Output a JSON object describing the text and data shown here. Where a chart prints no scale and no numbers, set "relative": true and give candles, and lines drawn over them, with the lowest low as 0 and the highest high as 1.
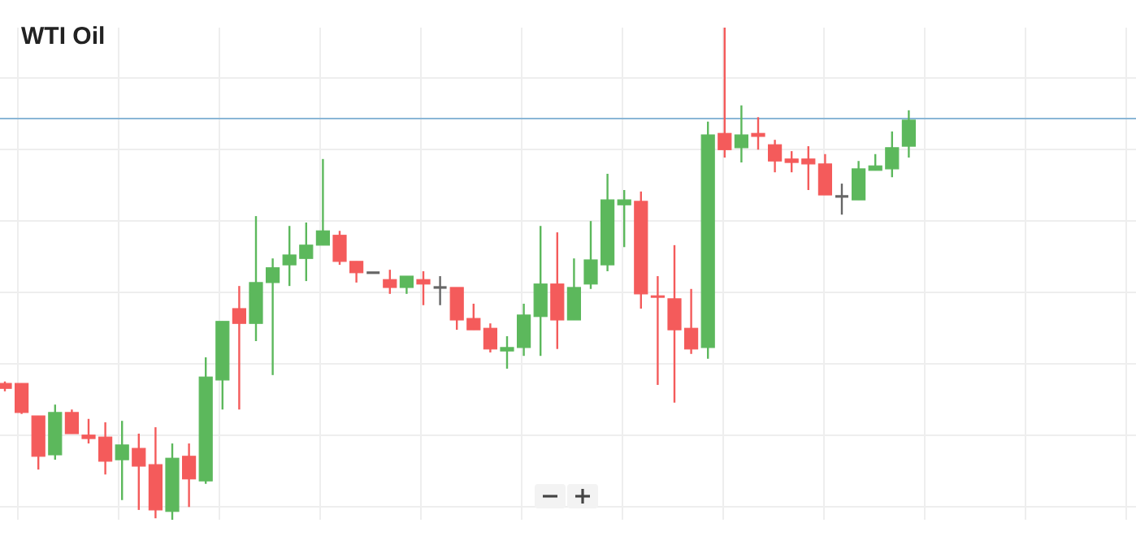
{
  "chart_data": {
    "type": "candlestick",
    "title": "WTI Oil",
    "relative": true,
    "grid": true,
    "categories": [
      null,
      null,
      null,
      null,
      null,
      null,
      null,
      null,
      null,
      null,
      null,
      null,
      null,
      null,
      null,
      null,
      null,
      null,
      null,
      null,
      null,
      null,
      null,
      null,
      null,
      null,
      null,
      null,
      null,
      null,
      null,
      null,
      null,
      null,
      null,
      null,
      null,
      null,
      null,
      null,
      null,
      null,
      null,
      null,
      null,
      null,
      null,
      null,
      null,
      null,
      null,
      null,
      null,
      null,
      null,
      null,
      null,
      null,
      null,
      null,
      null,
      null,
      null,
      null,
      null,
      null,
      null,
      null
    ],
    "ohlc": [
      [
        0.277,
        0.281,
        0.261,
        0.267
      ],
      [
        0.277,
        0.277,
        0.215,
        0.218
      ],
      [
        0.211,
        0.211,
        0.102,
        0.129
      ],
      [
        0.132,
        0.234,
        0.122,
        0.218
      ],
      [
        0.218,
        0.224,
        0.175,
        0.175
      ],
      [
        0.172,
        0.205,
        0.155,
        0.165
      ],
      [
        0.168,
        0.198,
        0.092,
        0.119
      ],
      [
        0.122,
        0.201,
        0.04,
        0.152
      ],
      [
        0.145,
        0.175,
        0.02,
        0.109
      ],
      [
        0.112,
        0.188,
        0.003,
        0.02
      ],
      [
        0.017,
        0.155,
        0,
        0.125
      ],
      [
        0.129,
        0.155,
        0.026,
        0.083
      ],
      [
        0.079,
        0.33,
        0.073,
        0.29
      ],
      [
        0.284,
        0.403,
        0.224,
        0.403
      ],
      [
        0.429,
        0.475,
        0.224,
        0.399
      ],
      [
        0.399,
        0.617,
        0.363,
        0.482
      ],
      [
        0.482,
        0.531,
        0.294,
        0.512
      ],
      [
        0.518,
        0.597,
        0.475,
        0.538
      ],
      [
        0.531,
        0.604,
        0.485,
        0.558
      ],
      [
        0.558,
        0.733,
        0.558,
        0.587
      ],
      [
        0.578,
        0.587,
        0.518,
        0.525
      ],
      [
        0.525,
        0.525,
        0.482,
        0.502
      ],
      [
        0.502,
        0.502,
        0.502,
        0.502
      ],
      [
        0.488,
        0.508,
        0.459,
        0.472
      ],
      [
        0.472,
        0.495,
        0.459,
        0.495
      ],
      [
        0.488,
        0.505,
        0.436,
        0.479
      ],
      [
        0.472,
        0.495,
        0.436,
        0.472
      ],
      [
        0.472,
        0.472,
        0.386,
        0.406
      ],
      [
        0.409,
        0.439,
        0.386,
        0.386
      ],
      [
        0.389,
        0.399,
        0.34,
        0.347
      ],
      [
        0.343,
        0.373,
        0.307,
        0.35
      ],
      [
        0.35,
        0.439,
        0.333,
        0.416
      ],
      [
        0.413,
        0.597,
        0.333,
        0.479
      ],
      [
        0.479,
        0.584,
        0.347,
        0.406
      ],
      [
        0.406,
        0.531,
        0.406,
        0.472
      ],
      [
        0.479,
        0.607,
        0.469,
        0.528
      ],
      [
        0.518,
        0.703,
        0.505,
        0.65
      ],
      [
        0.64,
        0.67,
        0.554,
        0.65
      ],
      [
        0.647,
        0.667,
        0.429,
        0.459
      ],
      [
        0.455,
        0.495,
        0.274,
        0.452
      ],
      [
        0.449,
        0.558,
        0.238,
        0.386
      ],
      [
        0.389,
        0.469,
        0.337,
        0.347
      ],
      [
        0.35,
        0.809,
        0.327,
        0.782
      ],
      [
        0.785,
        1,
        0.736,
        0.752
      ],
      [
        0.756,
        0.842,
        0.726,
        0.782
      ],
      [
        0.785,
        0.818,
        0.752,
        0.779
      ],
      [
        0.762,
        0.772,
        0.706,
        0.729
      ],
      [
        0.733,
        0.749,
        0.706,
        0.726
      ],
      [
        0.733,
        0.759,
        0.67,
        0.723
      ],
      [
        0.723,
        0.743,
        0.66,
        0.66
      ],
      [
        0.657,
        0.683,
        0.62,
        0.657
      ],
      [
        0.65,
        0.729,
        0.65,
        0.713
      ],
      [
        0.71,
        0.743,
        0.71,
        0.719
      ],
      [
        0.713,
        0.789,
        0.696,
        0.756
      ],
      [
        0.759,
        0.832,
        0.736,
        0.812
      ],
      null,
      null,
      null,
      null,
      null,
      null,
      null,
      null,
      null,
      null,
      null,
      null,
      null
    ],
    "ref_lines": [
      {
        "axis": "y",
        "value": 0.815,
        "color": "#8ab6d6"
      }
    ]
  }
}
